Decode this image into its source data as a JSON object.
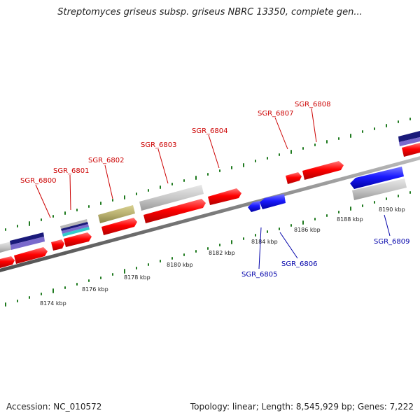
{
  "title": "Streptomyces griseus subsp. griseus NBRC 13350, complete gen...",
  "footer": {
    "accession": "Accession: NC_010572",
    "summary": "Topology: linear; Length: 8,545,929 bp; Genes: 7,222"
  },
  "colors": {
    "forward_gene": "#ff0000",
    "reverse_gene": "#1a1aff",
    "top_label": "#cc0000",
    "bottom_label": "#0000aa",
    "backbone": "#7a7a7a",
    "tick": "#1f7a1f",
    "feature_gray": "#c8c8c8",
    "feature_olive": "#b8b070",
    "feature_navy": "#1a1a7a",
    "feature_violet": "#7a6acc",
    "feature_cyan": "#33cccc"
  },
  "scale_labels": [
    "8174 kbp",
    "8176 kbp",
    "8178 kbp",
    "8180 kbp",
    "8182 kbp",
    "8184 kbp",
    "8186 kbp",
    "8188 kbp",
    "8190 kbp"
  ],
  "genes_top": [
    "SGR_6800",
    "SGR_6801",
    "SGR_6802",
    "SGR_6803",
    "SGR_6804",
    "SGR_6807",
    "SGR_6808"
  ],
  "genes_bottom": [
    "SGR_6805",
    "SGR_6806",
    "SGR_6809"
  ]
}
